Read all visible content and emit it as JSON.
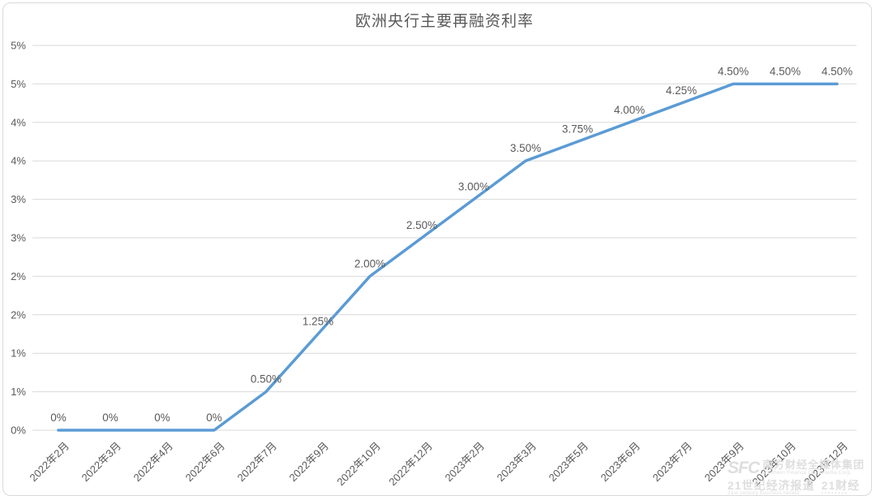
{
  "header": {
    "title": "欧洲央行主要再融资利率"
  },
  "chart_data": {
    "type": "line",
    "title": "欧洲央行主要再融资利率",
    "categories": [
      "2022年2月",
      "2022年3月",
      "2022年4月",
      "2022年6月",
      "2022年7月",
      "2022年9月",
      "2022年10月",
      "2022年12月",
      "2023年2月",
      "2023年3月",
      "2023年5月",
      "2023年6月",
      "2023年7月",
      "2023年9月",
      "2023年10月",
      "2023年12月"
    ],
    "values": [
      0,
      0,
      0,
      0,
      0.5,
      1.25,
      2.0,
      2.5,
      3.0,
      3.5,
      3.75,
      4.0,
      4.25,
      4.5,
      4.5,
      4.5
    ],
    "data_labels": [
      "0%",
      "0%",
      "0%",
      "0%",
      "0.50%",
      "1.25%",
      "2.00%",
      "2.50%",
      "3.00%",
      "3.50%",
      "3.75%",
      "4.00%",
      "4.25%",
      "4.50%",
      "4.50%",
      "4.50%"
    ],
    "xlabel": "",
    "ylabel": "",
    "ylim": [
      0,
      5
    ],
    "y_tick_step": 0.5,
    "y_tick_labels": [
      "0%",
      "1%",
      "1%",
      "2%",
      "2%",
      "3%",
      "3%",
      "4%",
      "4%",
      "5%",
      "5%"
    ],
    "grid": true,
    "legend": "none",
    "line_color": "#5B9BD5",
    "gridline_color": "#d9d9d9",
    "axis_text_color": "#595959",
    "data_label_color": "#595959"
  },
  "watermark": {
    "logo_text": "SFC",
    "org_zh": "南方财经全媒体集团",
    "org_en": "Southern Finance Omnimedia Corp.",
    "brand_zh": "21世纪经济报道",
    "brand_short": "21财经",
    "brand_en": "21st century business herald",
    "dots": "▪▪▪▪▪▪▪▪"
  }
}
